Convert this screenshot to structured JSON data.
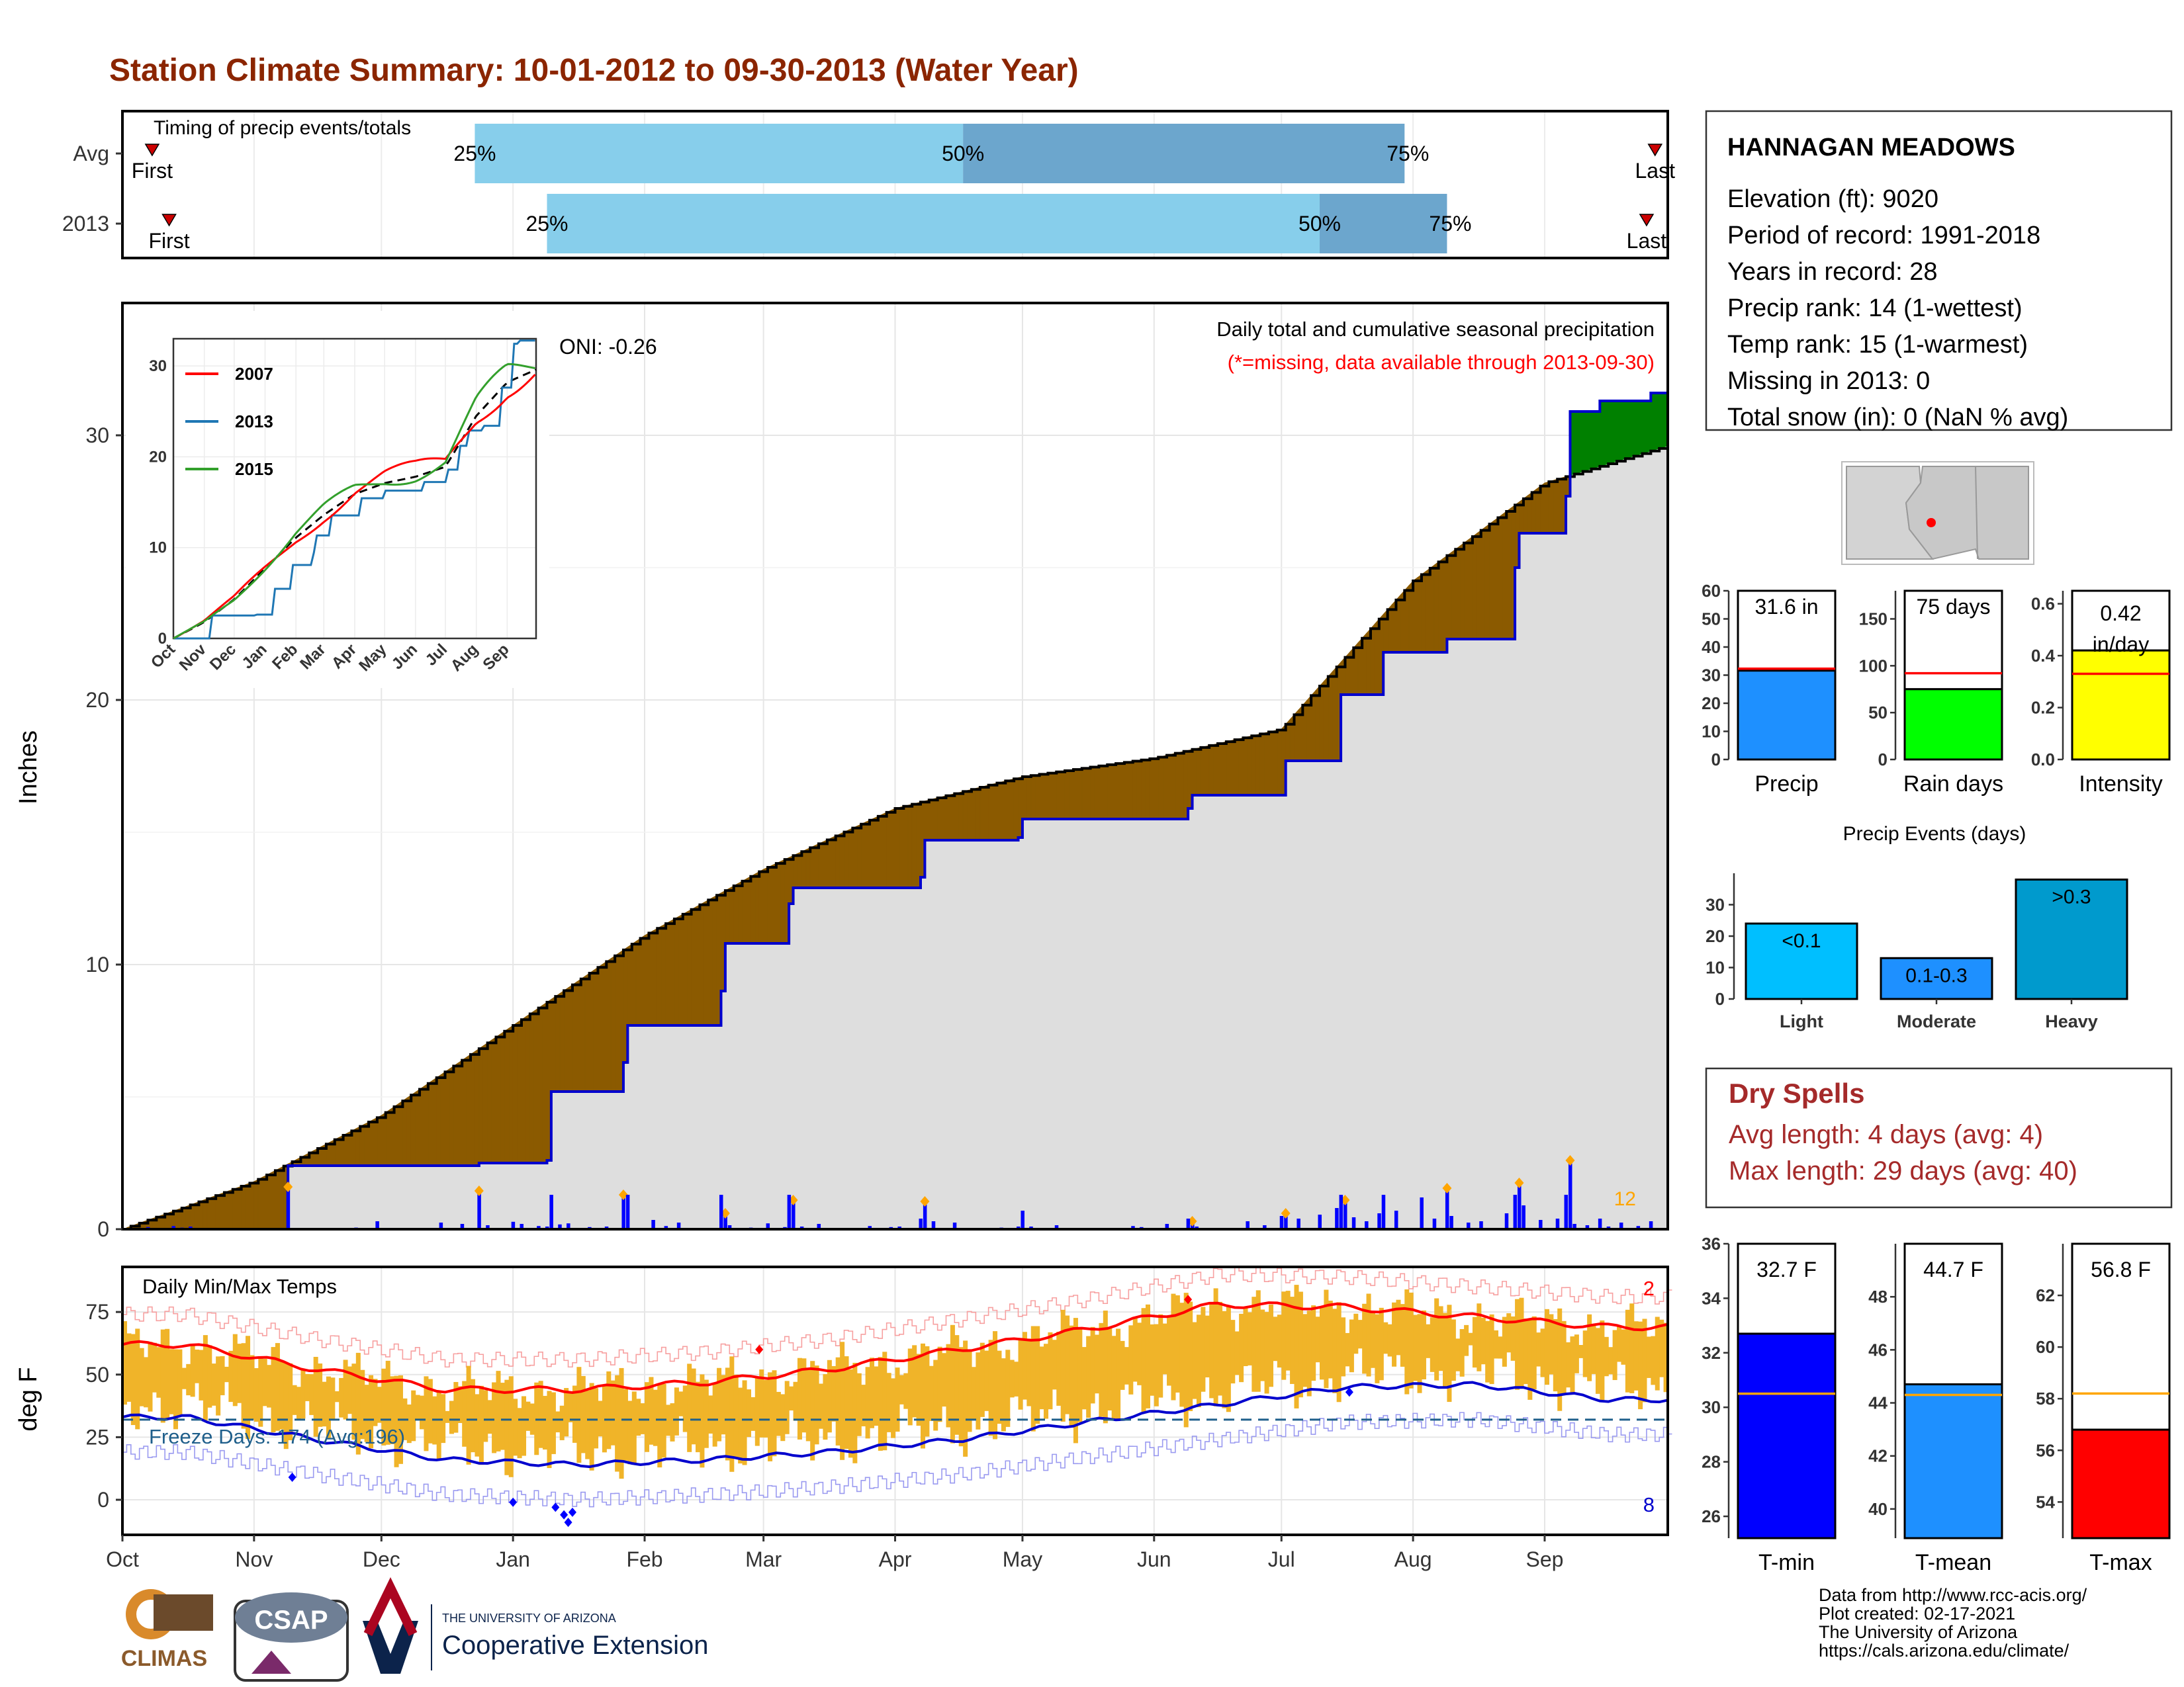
{
  "title": "Station Climate Summary: 10-01-2012 to 09-30-2013 (Water Year)",
  "colors": {
    "title": "#8B2500",
    "avg_cum": "#000000",
    "deficit": "#8B5A00",
    "surplus": "#008000",
    "cum_2013": "#0000CD",
    "daily_bar": "#0000FF",
    "extreme_marker": "#FFA500",
    "light_blue": "#87CEEB",
    "mid_blue": "#6CA6CD",
    "temp_bar": "#F0B429",
    "tmax": "#FF0000",
    "tmin": "#0000CD",
    "freeze_line": "#1f5f8b",
    "dry_spells": "#A52A2A"
  },
  "timing": {
    "title": "Timing of precip events/totals",
    "rows": [
      {
        "label": "Avg",
        "first_label": "First",
        "last_label": "Last",
        "first": "2012-10-08",
        "last": "2013-09-27",
        "q25": "2012-12-23",
        "q50": "2013-04-17",
        "q75": "2013-07-30",
        "q25_label": "25%",
        "q50_label": "50%",
        "q75_label": "75%"
      },
      {
        "label": "2013",
        "first_label": "First",
        "last_label": "Last",
        "first": "2012-10-12",
        "last": "2013-09-25",
        "q25": "2013-01-09",
        "q50": "2013-07-10",
        "q75": "2013-08-09",
        "q25_label": "25%",
        "q50_label": "50%",
        "q75_label": "75%"
      }
    ]
  },
  "precip_panel": {
    "ylabel": "Inches",
    "oni": "ONI: -0.26",
    "caption_line1": "Daily total and cumulative seasonal precipitation",
    "caption_line2": "(*=missing, data available through 2013-09-30)",
    "extreme_count": "12"
  },
  "inset": {
    "legend": [
      "2007",
      "2013",
      "2015"
    ],
    "xticks": [
      "Oct",
      "Nov",
      "Dec",
      "Jan",
      "Feb",
      "Mar",
      "Apr",
      "May",
      "Jun",
      "Jul",
      "Aug",
      "Sep"
    ]
  },
  "temp_panel": {
    "ylabel": "deg F",
    "title": "Daily Min/Max Temps",
    "freeze": "Freeze Days: 174 (Avg:196)",
    "max_records": "2",
    "min_records": "8"
  },
  "months": [
    "Oct",
    "Nov",
    "Dec",
    "Jan",
    "Feb",
    "Mar",
    "Apr",
    "May",
    "Jun",
    "Jul",
    "Aug",
    "Sep"
  ],
  "station": {
    "name": "HANNAGAN MEADOWS",
    "lines": [
      "Elevation (ft): 9020",
      "Period of record: 1991-2018",
      "Years in record: 28",
      "Precip rank: 14 (1-wettest)",
      "Temp rank: 15 (1-warmest)",
      "Missing in 2013: 0",
      "Total snow (in): 0 (NaN % avg)"
    ]
  },
  "summary_bars": [
    {
      "label": "Precip",
      "text": "31.6 in",
      "value": 31.6,
      "avg": 32.3,
      "ylim": [
        0,
        60
      ],
      "ticks": [
        0,
        10,
        20,
        30,
        40,
        50,
        60
      ],
      "color": "#1E90FF"
    },
    {
      "label": "Rain days",
      "text": "75 days",
      "value": 75,
      "avg": 92,
      "ylim": [
        0,
        180
      ],
      "ticks": [
        0,
        50,
        100,
        150
      ],
      "color": "#00FF00"
    },
    {
      "label": "Intensity",
      "text": "0.42 in/day",
      "value": 0.42,
      "avg": 0.33,
      "ylim": [
        0,
        0.65
      ],
      "ticks": [
        "0.0",
        "0.2",
        "0.4",
        "0.6"
      ],
      "color": "#FFFF00"
    }
  ],
  "events": {
    "title": "Precip Events (days)",
    "categories": [
      "Light",
      "Moderate",
      "Heavy"
    ],
    "labels": [
      "<0.1",
      "0.1-0.3",
      ">0.3"
    ],
    "values": [
      24,
      13,
      38
    ],
    "ticks": [
      0,
      10,
      20,
      30
    ],
    "colors": [
      "#00BFFF",
      "#1E90FF",
      "#009ACD"
    ]
  },
  "dry_spells": {
    "title": "Dry Spells",
    "line1": "Avg length: 4 days (avg: 4)",
    "line2": "Max length: 29 days (avg: 40)"
  },
  "temp_bars": [
    {
      "label": "T-min",
      "text": "32.7 F",
      "value": 32.7,
      "avg": 30.5,
      "ylim": [
        25.2,
        36
      ],
      "ticks": [
        26,
        28,
        30,
        32,
        34,
        36
      ],
      "color": "#0000FF"
    },
    {
      "label": "T-mean",
      "text": "44.7 F",
      "value": 44.7,
      "avg": 44.3,
      "ylim": [
        38.9,
        50
      ],
      "ticks": [
        40,
        42,
        44,
        46,
        48
      ],
      "color": "#1E90FF"
    },
    {
      "label": "T-max",
      "text": "56.8 F",
      "value": 56.8,
      "avg": 58.2,
      "ylim": [
        52.6,
        64
      ],
      "ticks": [
        54,
        56,
        58,
        60,
        62
      ],
      "color": "#FF0000"
    }
  ],
  "footer": [
    "Data from http://www.rcc-acis.org/",
    "Plot created: 02-17-2021",
    "The University of Arizona",
    "https://cals.arizona.edu/climate/"
  ],
  "logos": {
    "climas": "CLIMAS",
    "csap": "CSAP",
    "ua_small": "THE UNIVERSITY OF ARIZONA",
    "ua_big": "Cooperative Extension"
  },
  "chart_data": [
    {
      "type": "area",
      "title": "Daily total and cumulative seasonal precipitation",
      "ylabel": "Inches",
      "ylim": [
        0,
        35
      ],
      "xlim": [
        "2012-10-01",
        "2013-09-30"
      ],
      "series": [
        {
          "name": "2013",
          "x": [
            "2012-10-01",
            "2012-11-08",
            "2012-11-09",
            "2012-12-23",
            "2012-12-24",
            "2013-01-09",
            "2013-01-10",
            "2013-01-27",
            "2013-01-28",
            "2013-02-19",
            "2013-02-20",
            "2013-03-07",
            "2013-03-08",
            "2013-04-07",
            "2013-04-08",
            "2013-04-30",
            "2013-05-01",
            "2013-06-09",
            "2013-06-10",
            "2013-07-01",
            "2013-07-02",
            "2013-07-15",
            "2013-07-25",
            "2013-08-09",
            "2013-08-25",
            "2013-08-26",
            "2013-09-06",
            "2013-09-07",
            "2013-09-14",
            "2013-09-26",
            "2013-09-30"
          ],
          "y": [
            0,
            0,
            2.4,
            2.4,
            2.5,
            2.6,
            5.2,
            6.3,
            7.7,
            9.0,
            10.8,
            12.3,
            12.9,
            13.3,
            14.7,
            14.8,
            15.5,
            15.9,
            16.4,
            16.4,
            17.7,
            20.2,
            21.8,
            22.3,
            25.0,
            26.3,
            27.7,
            30.9,
            31.3,
            31.6,
            31.6
          ]
        },
        {
          "name": "Avg",
          "x": [
            "2012-10-01",
            "2012-10-15",
            "2012-11-01",
            "2012-12-01",
            "2013-01-01",
            "2013-02-01",
            "2013-03-01",
            "2013-04-01",
            "2013-05-01",
            "2013-06-01",
            "2013-07-01",
            "2013-08-01",
            "2013-09-01",
            "2013-09-30"
          ],
          "y": [
            0,
            0.8,
            1.8,
            4.3,
            7.7,
            11.1,
            13.6,
            15.9,
            17.1,
            17.8,
            18.9,
            24.5,
            28.2,
            29.6
          ]
        }
      ],
      "daily_max": [
        {
          "x": "2012-11-09",
          "y": 1.6
        },
        {
          "x": "2012-12-24",
          "y": 1.45
        },
        {
          "x": "2013-01-27",
          "y": 1.3
        },
        {
          "x": "2013-02-20",
          "y": 0.6
        },
        {
          "x": "2013-03-08",
          "y": 1.1
        },
        {
          "x": "2013-04-08",
          "y": 1.05
        },
        {
          "x": "2013-06-10",
          "y": 0.3
        },
        {
          "x": "2013-07-02",
          "y": 0.6
        },
        {
          "x": "2013-07-16",
          "y": 1.1
        },
        {
          "x": "2013-08-09",
          "y": 1.55
        },
        {
          "x": "2013-08-26",
          "y": 1.75
        },
        {
          "x": "2013-09-07",
          "y": 2.6
        }
      ]
    },
    {
      "type": "line",
      "title": "Daily Min/Max Temps",
      "ylabel": "deg F",
      "ylim": [
        -14,
        93
      ],
      "freeze_threshold": 32,
      "avg_tmax": {
        "months": [
          "Oct",
          "Nov",
          "Dec",
          "Jan",
          "Feb",
          "Mar",
          "Apr",
          "May",
          "Jun",
          "Jul",
          "Aug",
          "Sep"
        ],
        "values": [
          62,
          52,
          44,
          44,
          47,
          52,
          60,
          68,
          78,
          77,
          73,
          69
        ]
      },
      "avg_tmin": {
        "months": [
          "Oct",
          "Nov",
          "Dec",
          "Jan",
          "Feb",
          "Mar",
          "Apr",
          "May",
          "Jun",
          "Jul",
          "Aug",
          "Sep"
        ],
        "values": [
          33,
          24,
          16,
          14,
          16,
          19,
          24,
          31,
          38,
          45,
          46,
          40
        ]
      }
    }
  ]
}
